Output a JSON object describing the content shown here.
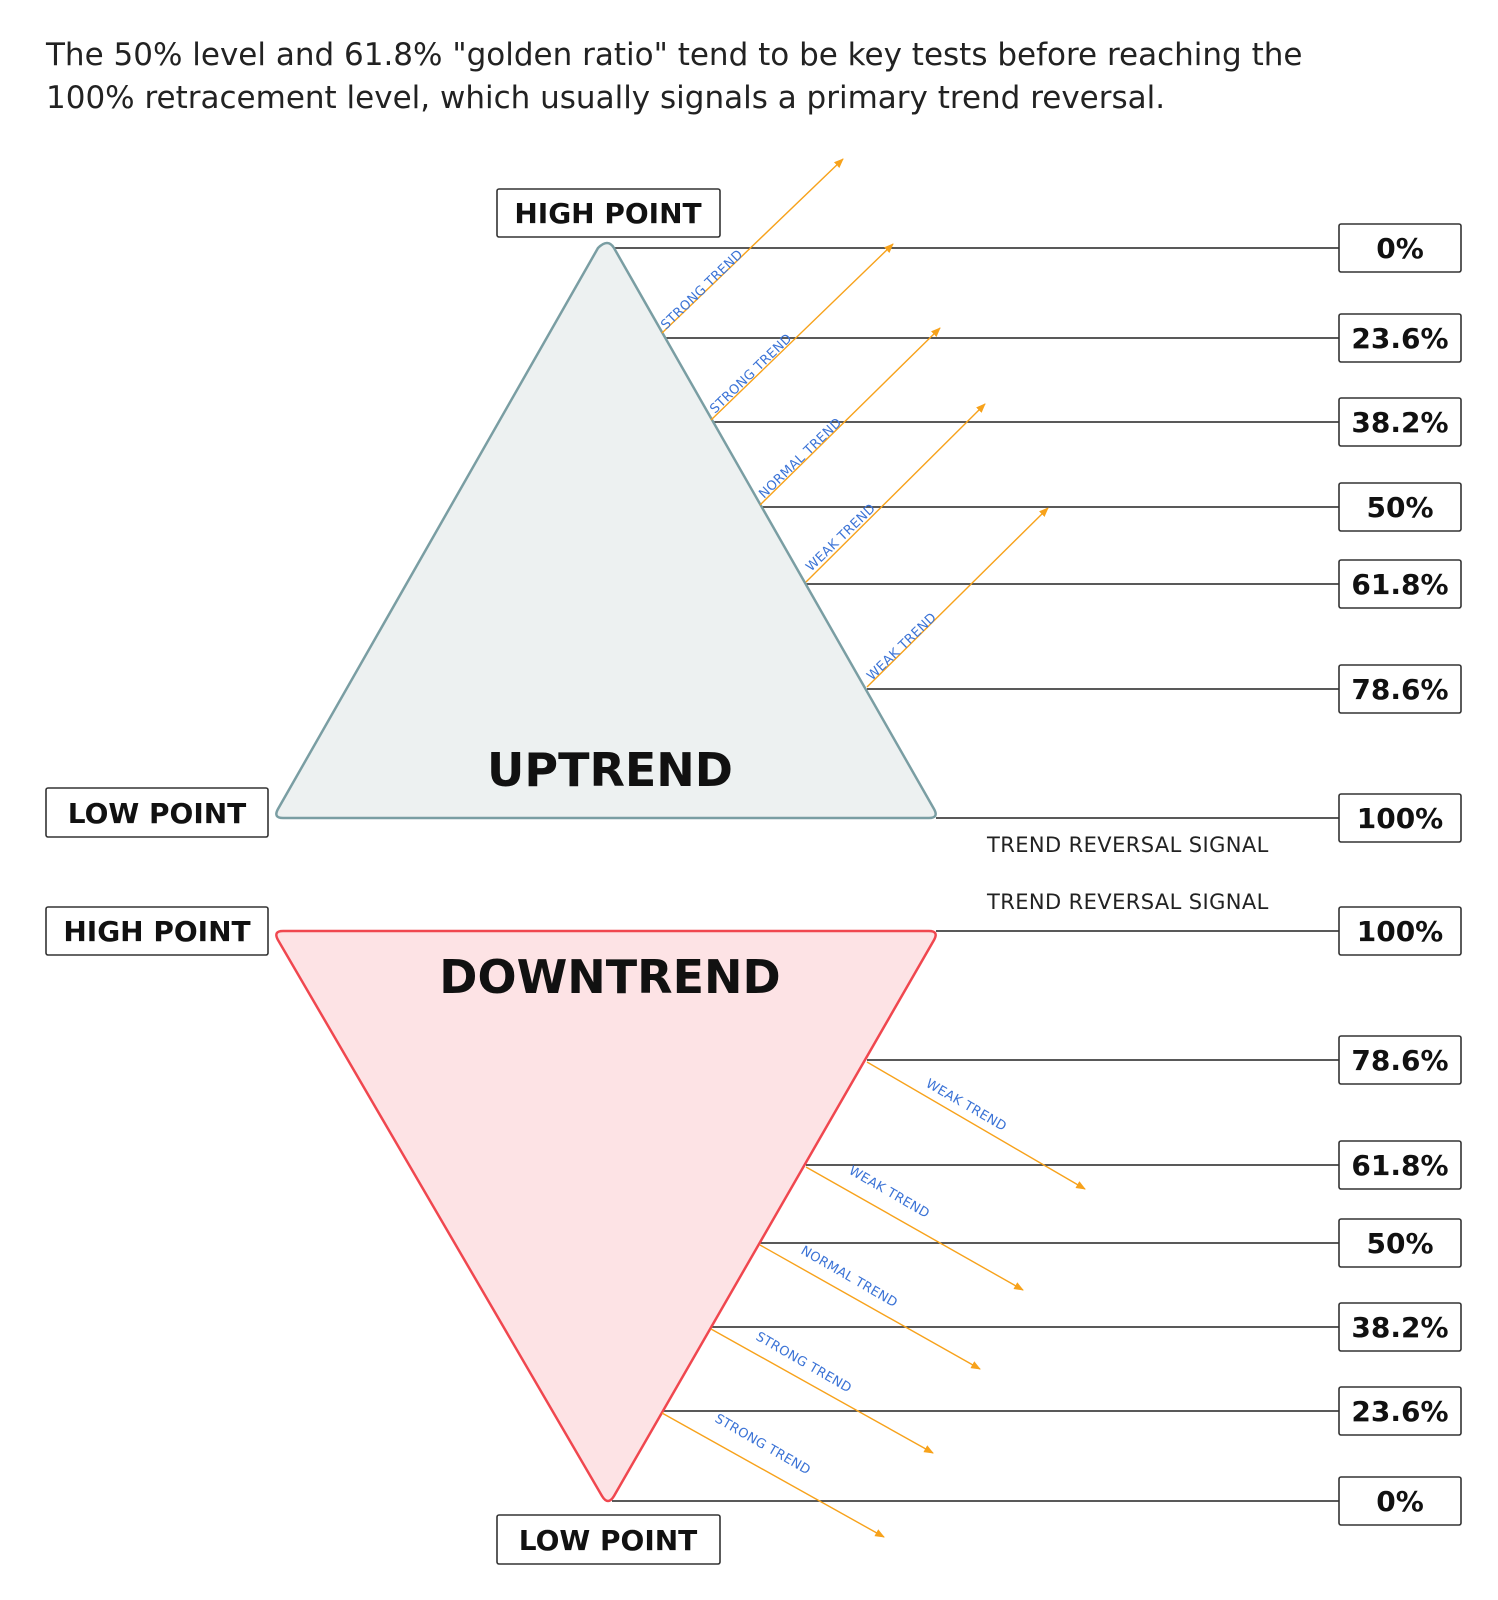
{
  "intro": "The 50% level and 61.8% \"golden ratio\" tend to be key tests before reaching the 100% retracement level, which usually signals a primary trend reversal.",
  "colors": {
    "uptrend_fill": "#edf1f1",
    "uptrend_stroke": "#7a9ea3",
    "downtrend_fill": "#fde3e5",
    "downtrend_stroke": "#f0474f",
    "arrow": "#f7a21b",
    "trend_text": "#3b73d6",
    "level_line": "#222222"
  },
  "uptrend": {
    "title": "UPTREND",
    "top_label": "HIGH POINT",
    "bottom_label": "LOW POINT",
    "levels": [
      "0%",
      "23.6%",
      "38.2%",
      "50%",
      "61.8%",
      "78.6%",
      "100%"
    ],
    "trends": [
      "STRONG TREND",
      "STRONG TREND",
      "NORMAL TREND",
      "WEAK TREND",
      "WEAK TREND"
    ],
    "reversal_signal": "TREND REVERSAL SIGNAL"
  },
  "downtrend": {
    "title": "DOWNTREND",
    "top_label": "HIGH POINT",
    "bottom_label": "LOW POINT",
    "levels": [
      "100%",
      "78.6%",
      "61.8%",
      "50%",
      "38.2%",
      "23.6%",
      "0%"
    ],
    "trends": [
      "WEAK TREND",
      "WEAK TREND",
      "NORMAL TREND",
      "STRONG TREND",
      "STRONG TREND"
    ],
    "reversal_signal": "TREND REVERSAL SIGNAL"
  }
}
